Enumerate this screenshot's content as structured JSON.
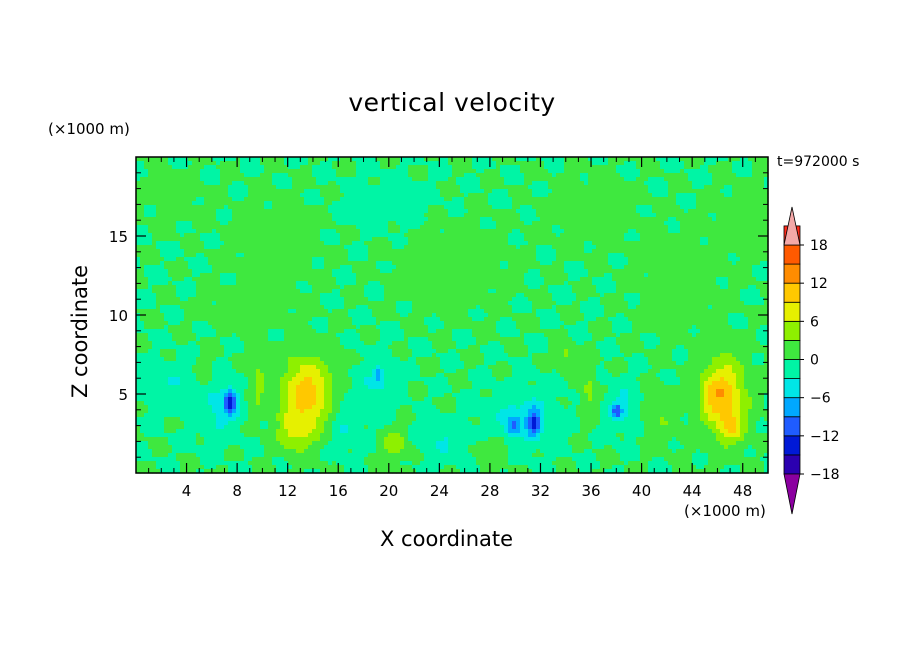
{
  "chart_data": {
    "type": "heatmap",
    "title": "vertical velocity",
    "xlabel": "X coordinate",
    "ylabel": "Z coordinate",
    "x_unit_label": "(×1000 m)",
    "y_unit_label": "(×1000 m)",
    "time_label": "t=972000 s",
    "xlim": [
      0,
      50
    ],
    "ylim": [
      0,
      20
    ],
    "x_ticks": [
      4,
      8,
      12,
      16,
      20,
      24,
      28,
      32,
      36,
      40,
      44,
      48
    ],
    "y_ticks": [
      5,
      10,
      15
    ],
    "colorbar": {
      "levels": [
        -21,
        -18,
        -15,
        -12,
        -9,
        -6,
        -3,
        0,
        3,
        6,
        9,
        12,
        15,
        18,
        21
      ],
      "tick_values": [
        18,
        12,
        6,
        0,
        -6,
        -12,
        -18
      ],
      "tick_labels": [
        "18",
        "12",
        "6",
        "0",
        "−6",
        "−12",
        "−18"
      ],
      "colors": [
        "#6a00a8",
        "#2b00b0",
        "#0019d6",
        "#1f5cff",
        "#00a8ff",
        "#00e6e6",
        "#00f5a5",
        "#3fe83f",
        "#8ef000",
        "#e6f000",
        "#ffc800",
        "#ff8c00",
        "#ff5a00",
        "#ff2a1a",
        "#f4a8a8"
      ],
      "under_color": "#8b00a0",
      "over_color": "#f4a8a8"
    },
    "background_value": 0,
    "features": [
      {
        "x": 13.5,
        "z": 5.0,
        "sx": 1.9,
        "sz": 2.3,
        "w": 11
      },
      {
        "x": 12.5,
        "z": 2.5,
        "sx": 1.4,
        "sz": 1.2,
        "w": 5
      },
      {
        "x": 46.5,
        "z": 4.8,
        "sx": 1.7,
        "sz": 2.4,
        "w": 11
      },
      {
        "x": 47.2,
        "z": 2.8,
        "sx": 0.9,
        "sz": 0.9,
        "w": 5
      },
      {
        "x": 45.5,
        "z": 5.0,
        "sx": 0.7,
        "sz": 1.0,
        "w": 3
      },
      {
        "x": 7.5,
        "z": 4.5,
        "sx": 0.55,
        "sz": 0.8,
        "w": -11
      },
      {
        "x": 6.5,
        "z": 4.0,
        "sx": 1.6,
        "sz": 1.7,
        "w": -4
      },
      {
        "x": 2.5,
        "z": 5.5,
        "sx": 2.0,
        "sz": 1.4,
        "w": -3
      },
      {
        "x": 31.5,
        "z": 3.2,
        "sx": 0.55,
        "sz": 0.9,
        "w": -10
      },
      {
        "x": 29.8,
        "z": 3.0,
        "sx": 0.5,
        "sz": 0.7,
        "w": -7
      },
      {
        "x": 30.5,
        "z": 3.5,
        "sx": 2.6,
        "sz": 1.7,
        "w": -4
      },
      {
        "x": 38.0,
        "z": 3.9,
        "sx": 0.4,
        "sz": 0.5,
        "w": -8
      },
      {
        "x": 38.5,
        "z": 4.2,
        "sx": 1.2,
        "sz": 1.4,
        "w": -4
      },
      {
        "x": 19.0,
        "z": 5.5,
        "sx": 1.6,
        "sz": 1.7,
        "w": -3
      },
      {
        "x": 19.2,
        "z": 6.2,
        "sx": 0.3,
        "sz": 0.5,
        "w": -7
      },
      {
        "x": 20.5,
        "z": 1.8,
        "sx": 1.0,
        "sz": 0.9,
        "w": 5
      },
      {
        "x": 9.6,
        "z": 5.7,
        "sx": 0.7,
        "sz": 1.6,
        "w": 4
      },
      {
        "x": 5.4,
        "z": 6.3,
        "sx": 0.5,
        "sz": 1.2,
        "w": 3
      },
      {
        "x": 35.8,
        "z": 5.0,
        "sx": 0.6,
        "sz": 1.5,
        "w": 4
      },
      {
        "x": 34.0,
        "z": 7.5,
        "sx": 0.5,
        "sz": 0.7,
        "w": 4
      },
      {
        "x": 24.5,
        "z": 2.0,
        "sx": 2.0,
        "sz": 1.2,
        "w": -3
      },
      {
        "x": 41.5,
        "z": 3.5,
        "sx": 1.4,
        "sz": 1.6,
        "w": 2.5
      },
      {
        "x": 16.5,
        "z": 3.0,
        "sx": 1.2,
        "sz": 1.5,
        "w": -3
      },
      {
        "x": 28.0,
        "z": 1.5,
        "sx": 1.5,
        "sz": 1.0,
        "w": 2.5
      },
      {
        "x": 11.0,
        "z": 14.5,
        "sx": 3.0,
        "sz": 2.5,
        "w": 2
      },
      {
        "x": 25.0,
        "z": 13.0,
        "sx": 4.0,
        "sz": 2.5,
        "w": 2
      },
      {
        "x": 36.0,
        "z": 16.5,
        "sx": 3.0,
        "sz": 2.0,
        "w": 2
      },
      {
        "x": 43.0,
        "z": 12.0,
        "sx": 3.0,
        "sz": 3.0,
        "w": 1.8
      },
      {
        "x": 3.0,
        "z": 17.5,
        "sx": 2.0,
        "sz": 1.5,
        "w": 1.6
      },
      {
        "x": 20.0,
        "z": 17.0,
        "sx": 3.0,
        "sz": 1.5,
        "w": -1.6
      },
      {
        "x": 9.0,
        "z": 10.5,
        "sx": 3.0,
        "sz": 1.2,
        "w": 2
      },
      {
        "x": 48.0,
        "z": 16.0,
        "sx": 2.0,
        "sz": 2.0,
        "w": 2
      }
    ]
  }
}
